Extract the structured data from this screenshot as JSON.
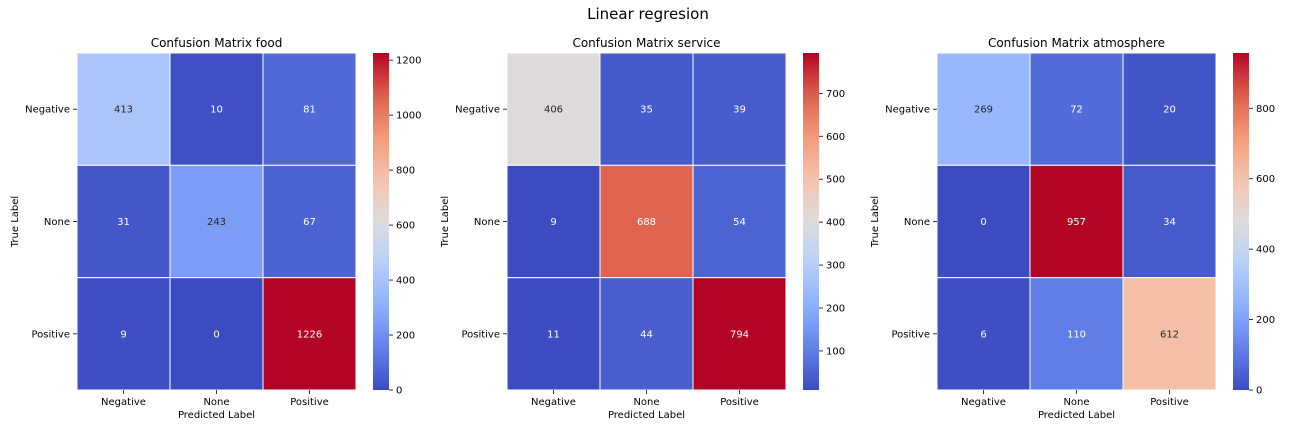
{
  "figure": {
    "title": "Linear regresion"
  },
  "chart_data": [
    {
      "type": "heatmap",
      "title": "Confusion Matrix food",
      "xlabel": "Predicted Label",
      "ylabel": "True Label",
      "x_categories": [
        "Negative",
        "None",
        "Positive"
      ],
      "y_categories": [
        "Negative",
        "None",
        "Positive"
      ],
      "values": [
        [
          413,
          10,
          81
        ],
        [
          31,
          243,
          67
        ],
        [
          9,
          0,
          1226
        ]
      ],
      "colormap": "coolwarm",
      "vmin": 0,
      "vmax": 1226,
      "colorbar_ticks": [
        0,
        200,
        400,
        600,
        800,
        1000,
        1200
      ]
    },
    {
      "type": "heatmap",
      "title": "Confusion Matrix service",
      "xlabel": "Predicted Label",
      "ylabel": "True Label",
      "x_categories": [
        "Negative",
        "None",
        "Positive"
      ],
      "y_categories": [
        "Negative",
        "None",
        "Positive"
      ],
      "values": [
        [
          406,
          35,
          39
        ],
        [
          9,
          688,
          54
        ],
        [
          11,
          44,
          794
        ]
      ],
      "colormap": "coolwarm",
      "vmin": 9,
      "vmax": 794,
      "colorbar_ticks": [
        100,
        200,
        300,
        400,
        500,
        600,
        700
      ]
    },
    {
      "type": "heatmap",
      "title": "Confusion Matrix atmosphere",
      "xlabel": "Predicted Label",
      "ylabel": "True Label",
      "x_categories": [
        "Negative",
        "None",
        "Positive"
      ],
      "y_categories": [
        "Negative",
        "None",
        "Positive"
      ],
      "values": [
        [
          269,
          72,
          20
        ],
        [
          0,
          957,
          34
        ],
        [
          6,
          110,
          612
        ]
      ],
      "colormap": "coolwarm",
      "vmin": 0,
      "vmax": 957,
      "colorbar_ticks": [
        0,
        200,
        400,
        600,
        800
      ]
    }
  ]
}
